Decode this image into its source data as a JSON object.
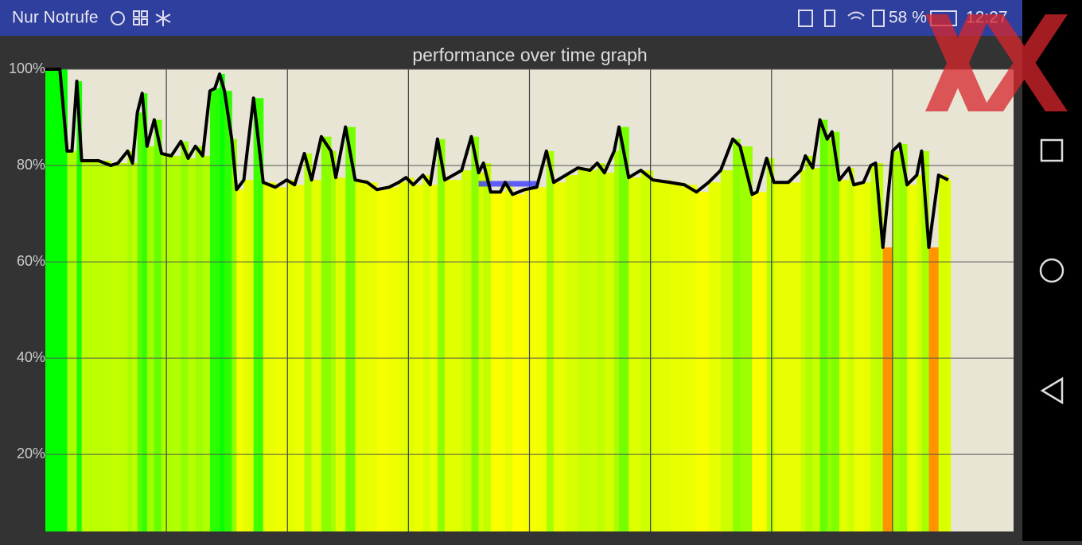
{
  "status_bar": {
    "carrier": "Nur Notrufe",
    "battery": "58 %",
    "time": "12:27"
  },
  "chart_data": {
    "type": "line",
    "title": "performance over time graph",
    "x": [
      0,
      0.6,
      0.9,
      1.1,
      1.3,
      1.5,
      1.9,
      2.2,
      2.7,
      3.0,
      3.4,
      3.6,
      3.8,
      4.0,
      4.2,
      4.5,
      4.8,
      5.2,
      5.6,
      5.9,
      6.2,
      6.5,
      6.8,
      7.0,
      7.2,
      7.4,
      7.7,
      7.9,
      8.2,
      8.6,
      9.0,
      9.5,
      9.97,
      10.3,
      10.7,
      11.0,
      11.4,
      11.8,
      12.0,
      12.4,
      12.8,
      13.3,
      13.7,
      14.2,
      14.6,
      14.9,
      15.2,
      15.6,
      15.9,
      16.2,
      16.5,
      17.2,
      17.6,
      17.9,
      18.1,
      18.4,
      18.8,
      19.0,
      19.3,
      19.8,
      20.3,
      20.7,
      21.0,
      21.5,
      22.0,
      22.5,
      22.8,
      23.1,
      23.5,
      23.7,
      24.1,
      24.6,
      25.1,
      25.8,
      26.4,
      26.9,
      27.4,
      27.9,
      28.4,
      28.7,
      29.2,
      29.4,
      29.8,
      30.1,
      30.7,
      31.2,
      31.4,
      31.7,
      32.0,
      32.3,
      32.5,
      32.8,
      33.2,
      33.4,
      33.8,
      34.1,
      34.3,
      34.6,
      35.0,
      35.3,
      35.6,
      36.0,
      36.2,
      36.5,
      36.9,
      37.3
    ],
    "series": [
      {
        "color": "#000000",
        "values": [
          100,
          100,
          83,
          83,
          97.5,
          81,
          81,
          81,
          80,
          80.5,
          83,
          80.5,
          91,
          95,
          84,
          89.5,
          82.5,
          82,
          85,
          81.5,
          84,
          82,
          95.5,
          96,
          99,
          95.5,
          85.5,
          75,
          77,
          94,
          76.5,
          75.5,
          77,
          76,
          82.5,
          77,
          86,
          83,
          77.5,
          88,
          77,
          76.5,
          75,
          75.5,
          76.5,
          77.5,
          76,
          78,
          76,
          85.5,
          77,
          79,
          86,
          78.5,
          80.5,
          74.5,
          74.5,
          76.5,
          74,
          75,
          75.5,
          83,
          76.5,
          78,
          79.5,
          79,
          80.5,
          78.5,
          83,
          88,
          77.5,
          79,
          77,
          76.5,
          76,
          74.5,
          76.5,
          79,
          85.5,
          84,
          74,
          74.5,
          81.5,
          76.5,
          76.5,
          79,
          82,
          79.5,
          89.5,
          85.5,
          87,
          77,
          79.5,
          76,
          76.5,
          80,
          80.5,
          63,
          83,
          84.5,
          76,
          78,
          83,
          63,
          78,
          77
        ]
      }
    ],
    "marker": {
      "x": [
        17.9,
        20.3
      ],
      "value": 76.2,
      "color": "#3b3bff"
    },
    "xlim": [
      0,
      40
    ],
    "xgrid": [
      5,
      10,
      15,
      20,
      25,
      30,
      35
    ],
    "ylim": [
      4,
      100
    ],
    "yticks": [
      {
        "value": 20,
        "label": "20%"
      },
      {
        "value": 40,
        "label": "40%"
      },
      {
        "value": 60,
        "label": "60%"
      },
      {
        "value": 80,
        "label": "80%"
      },
      {
        "value": 100,
        "label": "100%"
      }
    ],
    "grid": true
  }
}
